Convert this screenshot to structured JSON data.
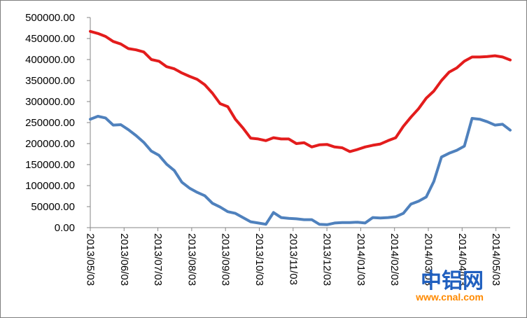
{
  "chart_data": {
    "type": "line",
    "title": "",
    "xlabel": "",
    "ylabel": "",
    "ylim": [
      0,
      500000
    ],
    "y_ticks": [
      "0.00",
      "50000.00",
      "100000.00",
      "150000.00",
      "200000.00",
      "250000.00",
      "300000.00",
      "350000.00",
      "400000.00",
      "450000.00",
      "500000.00"
    ],
    "y_tick_values": [
      0,
      50000,
      100000,
      150000,
      200000,
      250000,
      300000,
      350000,
      400000,
      450000,
      500000
    ],
    "x_ticks": [
      "2013/05/03",
      "2013/06/03",
      "2013/07/03",
      "2013/08/03",
      "2013/09/03",
      "2013/10/03",
      "2013/11/03",
      "2013/12/03",
      "2014/01/03",
      "2014/02/03",
      "2014/03/03",
      "2014/04/03",
      "2014/05/03"
    ],
    "grid": false,
    "legend": "none",
    "series": [
      {
        "color": "#e31c1c",
        "values": [
          467000,
          462000,
          455000,
          443000,
          437000,
          426000,
          423000,
          418000,
          400000,
          396000,
          383000,
          378000,
          368000,
          360000,
          353000,
          340000,
          320000,
          295000,
          288000,
          258000,
          237000,
          213000,
          211000,
          207000,
          214000,
          211000,
          211000,
          200000,
          202000,
          192000,
          197000,
          198000,
          192000,
          190000,
          181000,
          186000,
          192000,
          196000,
          199000,
          207000,
          214000,
          241000,
          263000,
          283000,
          308000,
          325000,
          350000,
          370000,
          380000,
          396000,
          406000,
          406000,
          407000,
          409000,
          406000,
          399000
        ]
      },
      {
        "color": "#4f81bd",
        "values": [
          258000,
          265000,
          261000,
          244000,
          245000,
          233000,
          219000,
          203000,
          182000,
          172000,
          151000,
          136000,
          108000,
          94000,
          84000,
          76000,
          58000,
          49000,
          38000,
          34000,
          24000,
          14000,
          11000,
          8000,
          36000,
          24000,
          22000,
          21000,
          19000,
          19000,
          8000,
          7000,
          11000,
          12000,
          12000,
          13000,
          11000,
          24000,
          23000,
          24000,
          26000,
          34000,
          56000,
          63000,
          73000,
          110000,
          168000,
          177000,
          184000,
          194000,
          260000,
          258000,
          252000,
          244000,
          246000,
          232000
        ]
      }
    ]
  },
  "watermark": {
    "text": "中铝网",
    "url": "www.cnal.com",
    "color_primary": "#1f5fbf",
    "color_secondary": "#ff8a00"
  }
}
